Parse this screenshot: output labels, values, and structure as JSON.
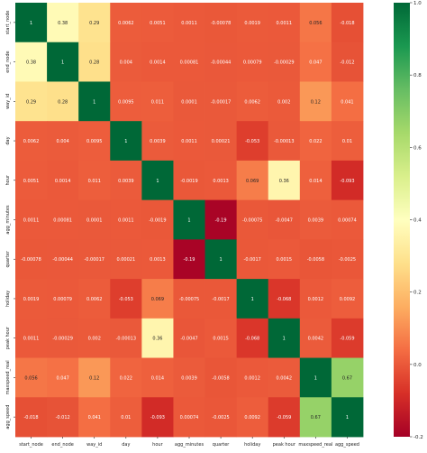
{
  "chart_data": {
    "type": "heatmap",
    "title": "",
    "xlabel": "",
    "ylabel": "",
    "variables": [
      "start_node",
      "end_node",
      "way_id",
      "day",
      "hour",
      "agg_minutes",
      "quarter",
      "holiday",
      "peak hour",
      "maxspeed_real",
      "agg_speed"
    ],
    "matrix": [
      [
        1,
        0.38,
        0.29,
        0.0062,
        0.0051,
        0.0011,
        -0.00078,
        0.0019,
        0.0011,
        0.056,
        -0.018
      ],
      [
        0.38,
        1,
        0.28,
        0.004,
        0.0014,
        0.00081,
        -0.00044,
        0.00079,
        -0.00029,
        0.047,
        -0.012
      ],
      [
        0.29,
        0.28,
        1,
        0.0095,
        0.011,
        0.0001,
        -0.00017,
        0.0062,
        0.002,
        0.12,
        0.041
      ],
      [
        0.0062,
        0.004,
        0.0095,
        1,
        0.0039,
        0.0011,
        0.00021,
        -0.053,
        -0.00013,
        0.022,
        0.01
      ],
      [
        0.0051,
        0.0014,
        0.011,
        0.0039,
        1,
        -0.0019,
        0.0013,
        0.069,
        0.36,
        0.014,
        -0.093
      ],
      [
        0.0011,
        0.00081,
        0.0001,
        0.0011,
        -0.0019,
        1,
        -0.19,
        -0.00075,
        -0.0047,
        0.0039,
        0.00074
      ],
      [
        -0.00078,
        -0.00044,
        -0.00017,
        0.00021,
        0.0013,
        -0.19,
        1,
        -0.0017,
        0.0015,
        -0.0058,
        -0.0025
      ],
      [
        0.0019,
        0.00079,
        0.0062,
        -0.053,
        0.069,
        -0.00075,
        -0.0017,
        1,
        -0.068,
        0.0012,
        0.0092
      ],
      [
        0.0011,
        -0.00029,
        0.002,
        -0.00013,
        0.36,
        -0.0047,
        0.0015,
        -0.068,
        1,
        0.0042,
        -0.059
      ],
      [
        0.056,
        0.047,
        0.12,
        0.022,
        0.014,
        0.0039,
        -0.0058,
        0.0012,
        0.0042,
        1,
        0.67
      ],
      [
        -0.018,
        -0.012,
        0.041,
        0.01,
        -0.093,
        0.00074,
        -0.0025,
        0.0092,
        -0.059,
        0.67,
        1
      ]
    ],
    "colormap": "RdYlGn",
    "vmin": -0.2,
    "vmax": 1.0,
    "colorbar_ticks": [
      "1.0",
      "0.8",
      "0.6",
      "0.4",
      "0.2",
      "0.0",
      "-0.2"
    ],
    "colorbar_tick_values": [
      1.0,
      0.8,
      0.6,
      0.4,
      0.2,
      0.0,
      -0.2
    ],
    "colors": {
      "stops": [
        "#a50026",
        "#d73027",
        "#f46d43",
        "#fdae61",
        "#fee08b",
        "#ffffbf",
        "#d9ef8b",
        "#a6d96a",
        "#66bd63",
        "#1a9850",
        "#006837"
      ]
    }
  }
}
